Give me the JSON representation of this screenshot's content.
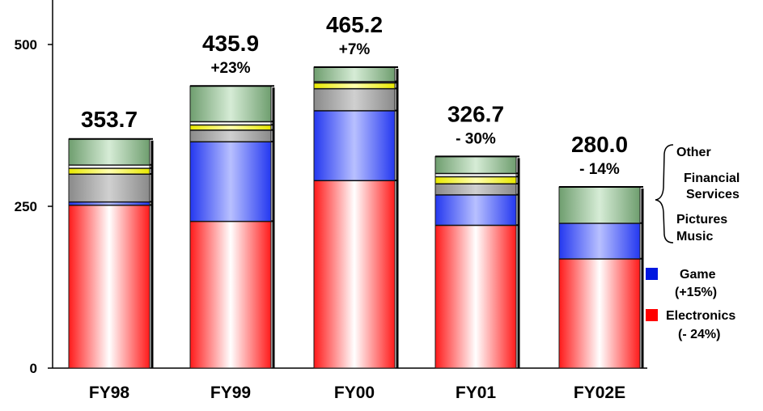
{
  "chart_data": {
    "type": "bar",
    "stacked": true,
    "categories": [
      "FY98",
      "FY99",
      "FY00",
      "FY01",
      "FY02E"
    ],
    "ylim": [
      0,
      500
    ],
    "y_ticks": [
      "0",
      "250",
      "500"
    ],
    "totals": [
      "353.7",
      "435.9",
      "465.2",
      "326.7",
      "280.0"
    ],
    "growth": [
      "",
      "+23%",
      "+7%",
      "- 30%",
      "- 14%"
    ],
    "series": [
      {
        "key": "electronics",
        "values": [
          252,
          227,
          290,
          221,
          169
        ]
      },
      {
        "key": "game",
        "values": [
          5,
          123,
          108,
          47,
          55
        ]
      },
      {
        "key": "pictures",
        "values": [
          43,
          18,
          34,
          17,
          0
        ]
      },
      {
        "key": "music",
        "values": [
          9,
          8,
          9,
          11,
          0
        ]
      },
      {
        "key": "financial",
        "values": [
          5,
          5,
          2,
          5,
          0
        ]
      },
      {
        "key": "other",
        "values": [
          40,
          55,
          22,
          26,
          56
        ]
      }
    ],
    "legend": {
      "other": "Other",
      "financial_1": "Financial",
      "financial_2": "Services",
      "pictures": "Pictures",
      "music": "Music",
      "game_1": "Game",
      "game_2": "(+15%)",
      "electronics_1": "Electronics",
      "electronics_2": "(- 24%)"
    },
    "colors": {
      "electronics": "#ff2020",
      "game": "#2a3cf0",
      "pictures": "#9a9a9a",
      "music": "#ffff00",
      "financial": "#ffffff",
      "other": "#7aa87a",
      "game_swatch": "#0018e0",
      "electronics_swatch": "#ff0000"
    }
  }
}
